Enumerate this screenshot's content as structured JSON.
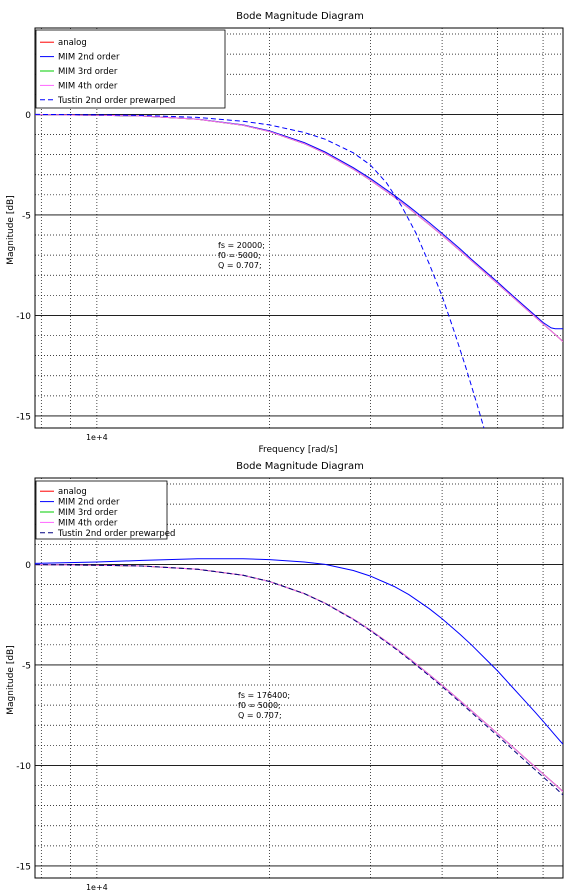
{
  "chart_data": [
    {
      "type": "line",
      "title": "Bode Magnitude Diagram",
      "xlabel": "Frequency [rad/s]",
      "ylabel": "Magnitude [dB]",
      "xscale": "log",
      "xlim": [
        7800,
        65000
      ],
      "ylim": [
        -15.6,
        4.3
      ],
      "x_tick_label": {
        "x": 10000,
        "label": "1e+4"
      },
      "y_ticks": [
        0,
        -5,
        -10,
        -15
      ],
      "grid": true,
      "legend_position": "top-left",
      "annotation": [
        "fs = 20000;",
        "f0 = 5000;",
        "Q = 0.707;"
      ],
      "series": [
        {
          "name": "analog",
          "color": "#ff0000",
          "dash": "",
          "x": [
            7800,
            10000,
            12000,
            15000,
            18000,
            20000,
            23000,
            25000,
            28000,
            30000,
            33000,
            35000,
            38000,
            40000,
            43000,
            45000,
            48000,
            50000,
            53000,
            55000,
            58000,
            60000,
            63000,
            65000
          ],
          "y": [
            -0.01,
            -0.04,
            -0.08,
            -0.24,
            -0.54,
            -0.85,
            -1.45,
            -1.93,
            -2.72,
            -3.27,
            -4.11,
            -4.66,
            -5.48,
            -6.01,
            -6.78,
            -7.27,
            -7.98,
            -8.42,
            -9.06,
            -9.47,
            -10.05,
            -10.42,
            -10.95,
            -11.3
          ]
        },
        {
          "name": "MIM 2nd order",
          "color": "#0000ff",
          "dash": "",
          "x": [
            7800,
            10000,
            12000,
            15000,
            18000,
            20000,
            23000,
            25000,
            28000,
            30000,
            33000,
            35000,
            38000,
            40000,
            43000,
            45000,
            48000,
            50000,
            53000,
            55000,
            58000,
            60000,
            62000,
            63000,
            65000
          ],
          "y": [
            -0.01,
            -0.04,
            -0.08,
            -0.23,
            -0.52,
            -0.82,
            -1.4,
            -1.87,
            -2.65,
            -3.19,
            -4.02,
            -4.57,
            -5.38,
            -5.92,
            -6.69,
            -7.2,
            -7.9,
            -8.34,
            -9.0,
            -9.4,
            -9.98,
            -10.35,
            -10.62,
            -10.66,
            -10.66
          ]
        },
        {
          "name": "MIM 3rd order",
          "color": "#00cc00",
          "dash": "",
          "x": [
            7800,
            10000,
            12000,
            15000,
            18000,
            20000,
            23000,
            25000,
            28000,
            30000,
            33000,
            35000,
            38000,
            40000,
            43000,
            45000,
            48000,
            50000,
            53000,
            55000,
            58000,
            60000,
            63000,
            65000
          ],
          "y": [
            -0.01,
            -0.04,
            -0.08,
            -0.24,
            -0.54,
            -0.85,
            -1.45,
            -1.93,
            -2.72,
            -3.27,
            -4.11,
            -4.66,
            -5.48,
            -6.01,
            -6.78,
            -7.27,
            -7.98,
            -8.42,
            -9.06,
            -9.47,
            -10.05,
            -10.42,
            -10.95,
            -11.3
          ]
        },
        {
          "name": "MIM 4th order",
          "color": "#ff66ff",
          "dash": "",
          "x": [
            7800,
            10000,
            12000,
            15000,
            18000,
            20000,
            23000,
            25000,
            28000,
            30000,
            33000,
            35000,
            38000,
            40000,
            43000,
            45000,
            48000,
            50000,
            53000,
            55000,
            58000,
            60000,
            63000,
            65000
          ],
          "y": [
            -0.01,
            -0.04,
            -0.08,
            -0.24,
            -0.54,
            -0.85,
            -1.45,
            -1.93,
            -2.72,
            -3.27,
            -4.11,
            -4.66,
            -5.48,
            -6.01,
            -6.78,
            -7.27,
            -7.98,
            -8.42,
            -9.06,
            -9.47,
            -10.05,
            -10.42,
            -10.95,
            -11.3
          ]
        },
        {
          "name": "Tustin 2nd order prewarped",
          "color": "#0000ff",
          "dash": "5,3",
          "x": [
            7800,
            10000,
            12000,
            15000,
            18000,
            20000,
            23000,
            25000,
            28000,
            30000,
            32000,
            34000,
            36000,
            38000,
            40000,
            42000,
            44000,
            46000,
            48000
          ],
          "y": [
            0.0,
            -0.02,
            -0.05,
            -0.15,
            -0.34,
            -0.52,
            -0.9,
            -1.23,
            -1.91,
            -2.52,
            -3.4,
            -4.56,
            -5.9,
            -7.44,
            -9.04,
            -10.8,
            -12.58,
            -14.4,
            -16.2
          ]
        }
      ]
    },
    {
      "type": "line",
      "title": "Bode Magnitude Diagram",
      "xlabel": "",
      "ylabel": "Magnitude [dB]",
      "xscale": "log",
      "xlim": [
        7800,
        65000
      ],
      "ylim": [
        -15.6,
        4.3
      ],
      "x_tick_label": {
        "x": 10000,
        "label": "1e+4"
      },
      "y_ticks": [
        0,
        -5,
        -10,
        -15
      ],
      "grid": true,
      "legend_position": "top-left",
      "annotation": [
        "fs = 176400;",
        "f0 = 5000;",
        "Q = 0.707;"
      ],
      "series": [
        {
          "name": "analog",
          "color": "#ff0000",
          "dash": "",
          "x": [
            7800,
            10000,
            12000,
            15000,
            18000,
            20000,
            23000,
            25000,
            28000,
            30000,
            33000,
            35000,
            38000,
            40000,
            43000,
            45000,
            48000,
            50000,
            53000,
            55000,
            58000,
            60000,
            63000,
            65000
          ],
          "y": [
            -0.01,
            -0.04,
            -0.08,
            -0.24,
            -0.54,
            -0.85,
            -1.45,
            -1.93,
            -2.72,
            -3.27,
            -4.11,
            -4.66,
            -5.48,
            -6.01,
            -6.78,
            -7.27,
            -7.98,
            -8.42,
            -9.06,
            -9.47,
            -10.05,
            -10.42,
            -10.95,
            -11.3
          ]
        },
        {
          "name": "MIM 2nd order",
          "color": "#0000ff",
          "dash": "",
          "x": [
            7800,
            10000,
            12000,
            15000,
            18000,
            20000,
            23000,
            25000,
            28000,
            30000,
            33000,
            35000,
            38000,
            40000,
            43000,
            45000,
            48000,
            50000,
            53000,
            55000,
            58000,
            60000,
            63000,
            65000
          ],
          "y": [
            0.05,
            0.12,
            0.2,
            0.28,
            0.28,
            0.24,
            0.12,
            0.0,
            -0.3,
            -0.58,
            -1.1,
            -1.5,
            -2.2,
            -2.7,
            -3.48,
            -4.0,
            -4.8,
            -5.3,
            -6.1,
            -6.6,
            -7.32,
            -7.8,
            -8.5,
            -8.95
          ]
        },
        {
          "name": "MIM 3rd order",
          "color": "#00cc00",
          "dash": "",
          "x": [
            7800,
            10000,
            12000,
            15000,
            18000,
            20000,
            23000,
            25000,
            28000,
            30000,
            33000,
            35000,
            38000,
            40000,
            43000,
            45000,
            48000,
            50000,
            53000,
            55000,
            58000,
            60000,
            63000,
            65000
          ],
          "y": [
            -0.01,
            -0.04,
            -0.08,
            -0.24,
            -0.54,
            -0.85,
            -1.45,
            -1.93,
            -2.72,
            -3.27,
            -4.11,
            -4.66,
            -5.48,
            -6.01,
            -6.78,
            -7.27,
            -7.98,
            -8.42,
            -9.06,
            -9.47,
            -10.05,
            -10.42,
            -10.95,
            -11.3
          ]
        },
        {
          "name": "MIM 4th order",
          "color": "#ff66ff",
          "dash": "",
          "x": [
            7800,
            10000,
            12000,
            15000,
            18000,
            20000,
            23000,
            25000,
            28000,
            30000,
            33000,
            35000,
            38000,
            40000,
            43000,
            45000,
            48000,
            50000,
            53000,
            55000,
            58000,
            60000,
            63000,
            65000
          ],
          "y": [
            -0.01,
            -0.04,
            -0.08,
            -0.24,
            -0.54,
            -0.85,
            -1.45,
            -1.93,
            -2.72,
            -3.27,
            -4.11,
            -4.66,
            -5.48,
            -6.01,
            -6.78,
            -7.27,
            -7.98,
            -8.42,
            -9.06,
            -9.47,
            -10.05,
            -10.42,
            -10.95,
            -11.3
          ]
        },
        {
          "name": "Tustin 2nd order prewarped",
          "color": "#000080",
          "dash": "5,3",
          "x": [
            7800,
            10000,
            12000,
            15000,
            18000,
            20000,
            23000,
            25000,
            28000,
            30000,
            33000,
            35000,
            38000,
            40000,
            43000,
            45000,
            48000,
            50000,
            53000,
            55000,
            58000,
            60000,
            63000,
            65000
          ],
          "y": [
            -0.01,
            -0.04,
            -0.08,
            -0.24,
            -0.54,
            -0.85,
            -1.45,
            -1.94,
            -2.74,
            -3.3,
            -4.15,
            -4.71,
            -5.54,
            -6.08,
            -6.86,
            -7.36,
            -8.08,
            -8.53,
            -9.18,
            -9.6,
            -10.19,
            -10.57,
            -11.11,
            -11.47
          ]
        }
      ]
    }
  ]
}
